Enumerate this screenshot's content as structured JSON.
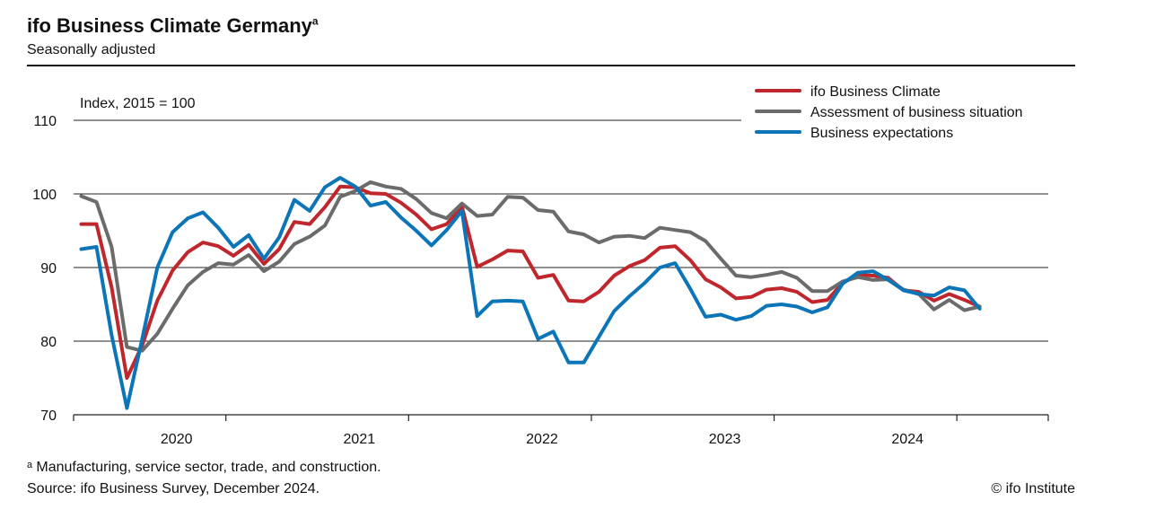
{
  "header": {
    "title": "ifo Business Climate Germany",
    "title_marker": "a",
    "subtitle": "Seasonally adjusted"
  },
  "footer": {
    "footnote": "ᵃ Manufacturing, service sector, trade, and construction.",
    "source": "Source: ifo Business Survey, December 2024.",
    "copyright": "© ifo Institute"
  },
  "chart_data": {
    "type": "line",
    "unit_label": "Index, 2015 = 100",
    "ylim": [
      70,
      110
    ],
    "yticks": [
      70,
      80,
      90,
      100,
      110
    ],
    "grid": true,
    "legend_position": "top-right",
    "x_start": "2019-09",
    "x_end": "2024-12",
    "year_labels": [
      "2020",
      "2021",
      "2022",
      "2023",
      "2024"
    ],
    "series": [
      {
        "name": "ifo Business Climate",
        "color": "#c0272d",
        "values": [
          95.9,
          95.9,
          87.3,
          75.0,
          79.4,
          85.5,
          89.6,
          92.1,
          93.4,
          92.9,
          91.6,
          93.1,
          90.5,
          92.5,
          96.2,
          95.9,
          98.2,
          101.0,
          100.9,
          100.1,
          100.0,
          98.8,
          97.2,
          95.2,
          95.9,
          98.3,
          90.1,
          91.1,
          92.3,
          92.2,
          88.6,
          89.0,
          85.5,
          85.4,
          86.7,
          88.9,
          90.2,
          91.0,
          92.7,
          92.9,
          91.0,
          88.4,
          87.3,
          85.8,
          86.0,
          87.0,
          87.2,
          86.7,
          85.3,
          85.6,
          87.9,
          89.0,
          88.9,
          88.6,
          86.9,
          86.7,
          85.5,
          86.4,
          85.6,
          84.7
        ]
      },
      {
        "name": "Assessment of business situation",
        "color": "#6b6b6b",
        "values": [
          99.7,
          98.9,
          92.8,
          79.2,
          78.7,
          81.0,
          84.4,
          87.6,
          89.4,
          90.6,
          90.4,
          91.7,
          89.5,
          90.8,
          93.2,
          94.2,
          95.7,
          99.6,
          100.4,
          101.6,
          101.0,
          100.7,
          99.3,
          97.4,
          96.7,
          98.7,
          97.0,
          97.2,
          99.6,
          99.5,
          97.8,
          97.6,
          94.9,
          94.5,
          93.4,
          94.2,
          94.3,
          94.0,
          95.4,
          95.1,
          94.8,
          93.6,
          91.2,
          88.9,
          88.7,
          89.0,
          89.4,
          88.6,
          86.8,
          86.8,
          88.1,
          88.7,
          88.3,
          88.4,
          87.0,
          86.4,
          84.3,
          85.6,
          84.2,
          84.7
        ]
      },
      {
        "name": "Business expectations",
        "color": "#0b75b8",
        "values": [
          92.5,
          92.8,
          80.8,
          70.9,
          80.3,
          90.0,
          94.8,
          96.7,
          97.5,
          95.4,
          92.8,
          94.4,
          91.2,
          94.1,
          99.2,
          97.7,
          100.9,
          102.2,
          101.0,
          98.4,
          98.9,
          96.8,
          95.0,
          93.0,
          95.1,
          97.7,
          83.4,
          85.4,
          85.5,
          85.4,
          80.3,
          81.3,
          77.1,
          77.1,
          80.6,
          84.1,
          86.1,
          87.9,
          90.0,
          90.6,
          87.1,
          83.3,
          83.6,
          82.9,
          83.4,
          84.8,
          85.0,
          84.7,
          83.9,
          84.6,
          87.8,
          89.3,
          89.5,
          88.3,
          86.9,
          86.4,
          86.2,
          87.3,
          86.9,
          84.4
        ]
      }
    ]
  }
}
